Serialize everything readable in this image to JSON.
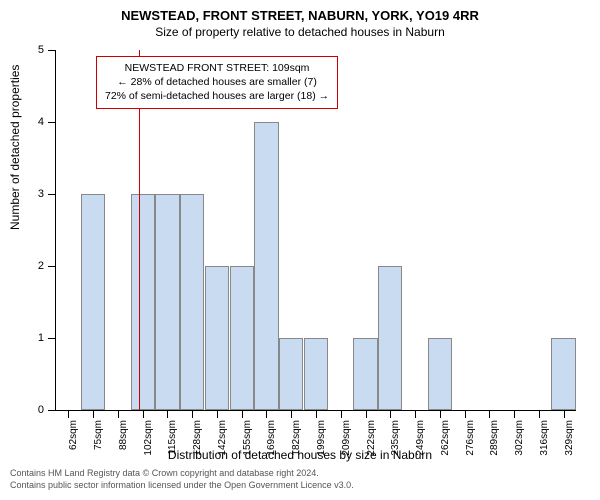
{
  "chart": {
    "type": "bar",
    "title": "NEWSTEAD, FRONT STREET, NABURN, YORK, YO19 4RR",
    "subtitle": "Size of property relative to detached houses in Naburn",
    "ylabel": "Number of detached properties",
    "xlabel": "Distribution of detached houses by size in Naburn",
    "ylim": [
      0,
      5
    ],
    "ytick_step": 1,
    "x_categories": [
      "62sqm",
      "75sqm",
      "88sqm",
      "102sqm",
      "115sqm",
      "128sqm",
      "142sqm",
      "155sqm",
      "169sqm",
      "182sqm",
      "199sqm",
      "209sqm",
      "222sqm",
      "235sqm",
      "249sqm",
      "262sqm",
      "276sqm",
      "289sqm",
      "302sqm",
      "316sqm",
      "329sqm"
    ],
    "values": [
      0,
      3,
      0,
      3,
      3,
      3,
      2,
      2,
      4,
      1,
      1,
      0,
      1,
      2,
      0,
      1,
      0,
      0,
      0,
      0,
      1
    ],
    "bar_color": "#c9dbf0",
    "bar_border_color": "#888888",
    "background_color": "#ffffff",
    "axis_color": "#000000",
    "marker": {
      "position_index": 3.35,
      "color": "#cc0000",
      "box_lines": [
        "NEWSTEAD FRONT STREET: 109sqm",
        "← 28% of detached houses are smaller (7)",
        "72% of semi-detached houses are larger (18) →"
      ]
    },
    "footer_lines": [
      "Contains HM Land Registry data © Crown copyright and database right 2024.",
      "Contains public sector information licensed under the Open Government Licence v3.0."
    ],
    "title_fontsize": 13,
    "subtitle_fontsize": 12,
    "label_fontsize": 12,
    "tick_fontsize": 10,
    "footer_fontsize": 9
  }
}
